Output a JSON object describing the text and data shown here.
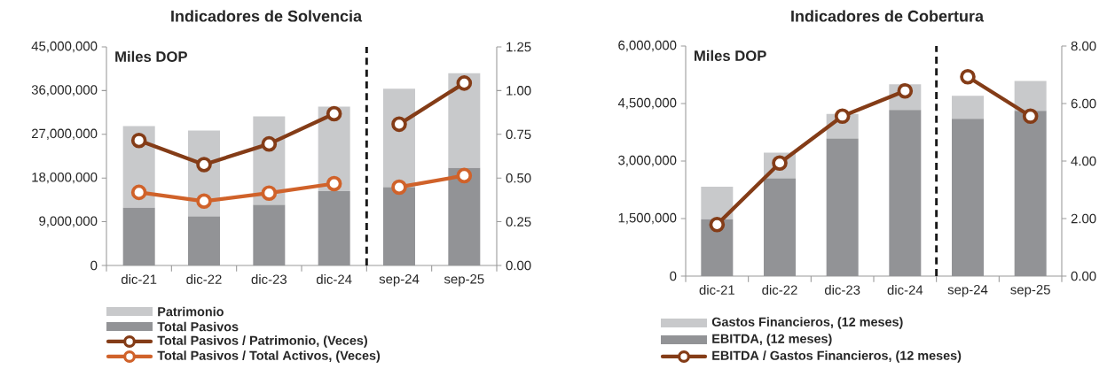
{
  "chart_data": [
    {
      "type": "bar",
      "title": "Indicadores de Solvencia",
      "stacked": true,
      "legend": "bottom",
      "grid": false,
      "annotations": [
        "Miles DOP"
      ],
      "categories": [
        "dic-21",
        "dic-22",
        "dic-23",
        "dic-24",
        "sep-24",
        "sep-25"
      ],
      "ylim": [
        0,
        45000000
      ],
      "yticks": [
        {
          "value": 0,
          "label": "0"
        },
        {
          "value": 9000000,
          "label": "9,000,000"
        },
        {
          "value": 18000000,
          "label": "18,000,000"
        },
        {
          "value": 27000000,
          "label": "27,000,000"
        },
        {
          "value": 36000000,
          "label": "36,000,000"
        },
        {
          "value": 45000000,
          "label": "45,000,000"
        }
      ],
      "y2lim": [
        0,
        1.25
      ],
      "y2ticks": [
        {
          "value": 0,
          "label": "0.00"
        },
        {
          "value": 0.25,
          "label": "0.25"
        },
        {
          "value": 0.5,
          "label": "0.50"
        },
        {
          "value": 0.75,
          "label": "0.75"
        },
        {
          "value": 1.0,
          "label": "1.00"
        },
        {
          "value": 1.25,
          "label": "1.25"
        }
      ],
      "series": [
        {
          "name": "Total Pasivos",
          "color": "#929396",
          "values": [
            11900000,
            10100000,
            12500000,
            15300000,
            16100000,
            20100000
          ]
        },
        {
          "name": "Patrimonio",
          "color": "#c8c9cb",
          "values": [
            16800000,
            17700000,
            18200000,
            17400000,
            20300000,
            19500000
          ]
        },
        {
          "name": "Total Pasivos / Patrimonio, (Veces)",
          "type": "line",
          "axis": "y2",
          "marker": "circle",
          "color": "#843c17",
          "values": [
            0.715,
            0.577,
            0.695,
            0.868,
            0.808,
            1.043
          ]
        },
        {
          "name": "Total Pasivos / Total Activos, (Veces)",
          "type": "line",
          "axis": "y2",
          "marker": "circle",
          "color": "#d0622a",
          "values": [
            0.418,
            0.368,
            0.414,
            0.468,
            0.448,
            0.514
          ]
        }
      ]
    },
    {
      "type": "bar",
      "title": "Indicadores de Cobertura",
      "stacked": true,
      "legend": "bottom",
      "grid": false,
      "annotations": [
        "Miles DOP"
      ],
      "categories": [
        "dic-21",
        "dic-22",
        "dic-23",
        "dic-24",
        "sep-24",
        "sep-25"
      ],
      "ylim": [
        0,
        6000000
      ],
      "yticks": [
        {
          "value": 0,
          "label": "0"
        },
        {
          "value": 1500000,
          "label": "1,500,000"
        },
        {
          "value": 3000000,
          "label": "3,000,000"
        },
        {
          "value": 4500000,
          "label": "4,500,000"
        },
        {
          "value": 6000000,
          "label": "6,000,000"
        }
      ],
      "y2lim": [
        0,
        8
      ],
      "y2ticks": [
        {
          "value": 0,
          "label": "0.00"
        },
        {
          "value": 2,
          "label": "2.00"
        },
        {
          "value": 4,
          "label": "4.00"
        },
        {
          "value": 6,
          "label": "6.00"
        },
        {
          "value": 8,
          "label": "8.00"
        }
      ],
      "series": [
        {
          "name": "EBITDA, (12 meses)",
          "color": "#929396",
          "values": [
            1480000,
            2550000,
            3590000,
            4330000,
            4100000,
            4310000
          ]
        },
        {
          "name": "Gastos Financieros, (12 meses)",
          "color": "#c8c9cb",
          "values": [
            850000,
            670000,
            640000,
            670000,
            600000,
            780000
          ]
        },
        {
          "name": "EBITDA / Gastos Financieros, (12 meses)",
          "type": "line",
          "axis": "y2",
          "marker": "circle",
          "color": "#843c17",
          "values": [
            1.79,
            3.93,
            5.56,
            6.44,
            6.93,
            5.56
          ]
        }
      ]
    }
  ]
}
